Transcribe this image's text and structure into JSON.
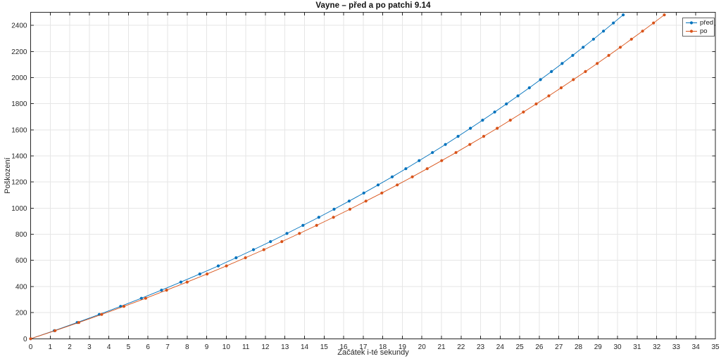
{
  "figure": {
    "background": "#ffffff"
  },
  "chart_data": {
    "type": "line",
    "title": "Vayne – před a po patchi 9.14",
    "xlabel": "Začátek i-té sekundy",
    "ylabel": "Poškození",
    "xlim": [
      0,
      35
    ],
    "ylim": [
      0,
      2500
    ],
    "xticks": [
      0,
      1,
      2,
      3,
      4,
      5,
      6,
      7,
      8,
      9,
      10,
      11,
      12,
      13,
      14,
      15,
      16,
      17,
      18,
      19,
      20,
      21,
      22,
      23,
      24,
      25,
      26,
      27,
      28,
      29,
      30,
      31,
      32,
      33,
      34,
      35
    ],
    "yticks": [
      0,
      200,
      400,
      600,
      800,
      1000,
      1200,
      1400,
      1600,
      1800,
      2000,
      2200,
      2400
    ],
    "grid": true,
    "grid_color": "#e6e6e6",
    "axis_color": "#262626",
    "text_color": "#262626",
    "legend": {
      "position": "northeast"
    },
    "marker": "filled-circle",
    "series": [
      {
        "id": "pred",
        "name": "před",
        "color": "#0072BD",
        "points": [
          [
            0.0,
            0
          ],
          [
            1.21,
            62
          ],
          [
            2.38,
            124
          ],
          [
            3.51,
            186
          ],
          [
            4.6,
            248
          ],
          [
            5.66,
            310
          ],
          [
            6.69,
            372
          ],
          [
            7.68,
            434
          ],
          [
            8.65,
            496
          ],
          [
            9.59,
            558
          ],
          [
            10.5,
            620
          ],
          [
            11.39,
            682
          ],
          [
            12.26,
            744
          ],
          [
            13.1,
            806
          ],
          [
            13.92,
            868
          ],
          [
            14.73,
            930
          ],
          [
            15.51,
            992
          ],
          [
            16.28,
            1054
          ],
          [
            17.03,
            1116
          ],
          [
            17.76,
            1178
          ],
          [
            18.48,
            1240
          ],
          [
            19.18,
            1302
          ],
          [
            19.86,
            1364
          ],
          [
            20.54,
            1426
          ],
          [
            21.2,
            1488
          ],
          [
            21.85,
            1550
          ],
          [
            22.48,
            1612
          ],
          [
            23.1,
            1674
          ],
          [
            23.72,
            1736
          ],
          [
            24.32,
            1798
          ],
          [
            24.91,
            1860
          ],
          [
            25.49,
            1922
          ],
          [
            26.06,
            1984
          ],
          [
            26.62,
            2046
          ],
          [
            27.17,
            2108
          ],
          [
            27.71,
            2170
          ],
          [
            28.24,
            2232
          ],
          [
            28.77,
            2294
          ],
          [
            29.28,
            2356
          ],
          [
            29.79,
            2418
          ],
          [
            30.29,
            2480
          ]
        ]
      },
      {
        "id": "po",
        "name": "po",
        "color": "#D95319",
        "points": [
          [
            0.0,
            0
          ],
          [
            1.25,
            62
          ],
          [
            2.46,
            124
          ],
          [
            3.63,
            186
          ],
          [
            4.77,
            248
          ],
          [
            5.88,
            310
          ],
          [
            6.95,
            372
          ],
          [
            8.0,
            434
          ],
          [
            9.02,
            496
          ],
          [
            10.01,
            558
          ],
          [
            10.98,
            620
          ],
          [
            11.92,
            682
          ],
          [
            12.84,
            744
          ],
          [
            13.74,
            806
          ],
          [
            14.62,
            868
          ],
          [
            15.48,
            930
          ],
          [
            16.32,
            992
          ],
          [
            17.14,
            1054
          ],
          [
            17.95,
            1116
          ],
          [
            18.74,
            1178
          ],
          [
            19.51,
            1240
          ],
          [
            20.27,
            1302
          ],
          [
            21.01,
            1364
          ],
          [
            21.74,
            1426
          ],
          [
            22.45,
            1488
          ],
          [
            23.16,
            1550
          ],
          [
            23.85,
            1612
          ],
          [
            24.52,
            1674
          ],
          [
            25.19,
            1736
          ],
          [
            25.84,
            1798
          ],
          [
            26.49,
            1860
          ],
          [
            27.12,
            1922
          ],
          [
            27.74,
            1984
          ],
          [
            28.36,
            2046
          ],
          [
            28.96,
            2108
          ],
          [
            29.55,
            2170
          ],
          [
            30.14,
            2232
          ],
          [
            30.71,
            2294
          ],
          [
            31.28,
            2356
          ],
          [
            31.84,
            2418
          ],
          [
            32.39,
            2480
          ]
        ]
      }
    ]
  }
}
